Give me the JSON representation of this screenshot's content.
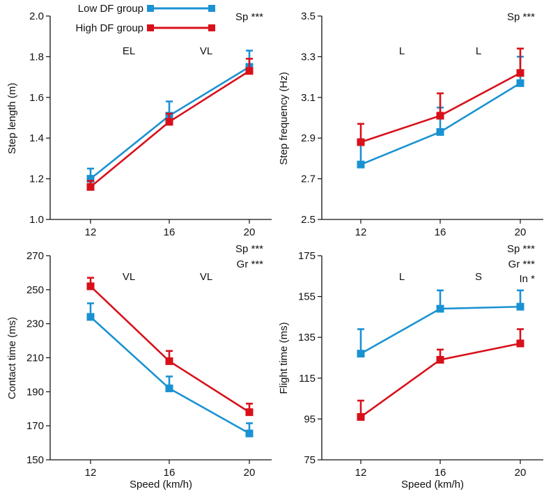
{
  "colors": {
    "low": "#1a92d2",
    "high": "#d8101a",
    "axis": "#111111"
  },
  "legend": {
    "items": [
      {
        "key": "low",
        "label": "Low DF group"
      },
      {
        "key": "high",
        "label": "High DF group"
      }
    ]
  },
  "chart_data": [
    {
      "type": "line",
      "ylabel": "Step length (m)",
      "xlabel": "",
      "categories": [
        "12",
        "16",
        "20"
      ],
      "ylim": [
        1.0,
        2.0
      ],
      "yticks": [
        "1.0",
        "1.2",
        "1.4",
        "1.6",
        "1.8",
        "2.0"
      ],
      "series": [
        {
          "name": "Low DF group",
          "key": "low",
          "values": [
            1.2,
            1.51,
            1.75
          ],
          "errors": [
            0.05,
            0.07,
            0.08
          ]
        },
        {
          "name": "High DF group",
          "key": "high",
          "values": [
            1.16,
            1.48,
            1.73
          ],
          "errors": [
            0.03,
            0.04,
            0.06
          ]
        }
      ],
      "stats": [
        "Sp ***"
      ],
      "pairwise": [
        "EL",
        "VL"
      ]
    },
    {
      "type": "line",
      "ylabel": "Step frequency (Hz)",
      "xlabel": "",
      "categories": [
        "12",
        "16",
        "20"
      ],
      "ylim": [
        2.5,
        3.5
      ],
      "yticks": [
        "2.5",
        "2.7",
        "2.9",
        "3.1",
        "3.3",
        "3.5"
      ],
      "series": [
        {
          "name": "Low DF group",
          "key": "low",
          "values": [
            2.77,
            2.93,
            3.17
          ],
          "errors": [
            0.1,
            0.12,
            0.13
          ]
        },
        {
          "name": "High DF group",
          "key": "high",
          "values": [
            2.88,
            3.01,
            3.22
          ],
          "errors": [
            0.09,
            0.11,
            0.12
          ]
        }
      ],
      "stats": [
        "Sp ***"
      ],
      "pairwise": [
        "L",
        "L"
      ]
    },
    {
      "type": "line",
      "ylabel": "Contact time (ms)",
      "xlabel": "Speed (km/h)",
      "categories": [
        "12",
        "16",
        "20"
      ],
      "ylim": [
        150,
        270
      ],
      "yticks": [
        "150",
        "170",
        "190",
        "210",
        "230",
        "250",
        "270"
      ],
      "series": [
        {
          "name": "Low DF group",
          "key": "low",
          "values": [
            234,
            192,
            165.5
          ],
          "errors": [
            8,
            7,
            6
          ]
        },
        {
          "name": "High DF group",
          "key": "high",
          "values": [
            252,
            208,
            178
          ],
          "errors": [
            5,
            6,
            5
          ]
        }
      ],
      "stats": [
        "Sp ***",
        "Gr ***"
      ],
      "pairwise": [
        "VL",
        "VL"
      ]
    },
    {
      "type": "line",
      "ylabel": "Flight time (ms)",
      "xlabel": "Speed (km/h)",
      "categories": [
        "12",
        "16",
        "20"
      ],
      "ylim": [
        75,
        175
      ],
      "yticks": [
        "75",
        "95",
        "115",
        "135",
        "155",
        "175"
      ],
      "series": [
        {
          "name": "Low DF group",
          "key": "low",
          "values": [
            127,
            149,
            150
          ],
          "errors": [
            12,
            9,
            8
          ]
        },
        {
          "name": "High DF group",
          "key": "high",
          "values": [
            96,
            124,
            132
          ],
          "errors": [
            8,
            5,
            7
          ]
        }
      ],
      "stats": [
        "Sp ***",
        "Gr ***",
        "In *"
      ],
      "pairwise": [
        "L",
        "S"
      ]
    }
  ]
}
